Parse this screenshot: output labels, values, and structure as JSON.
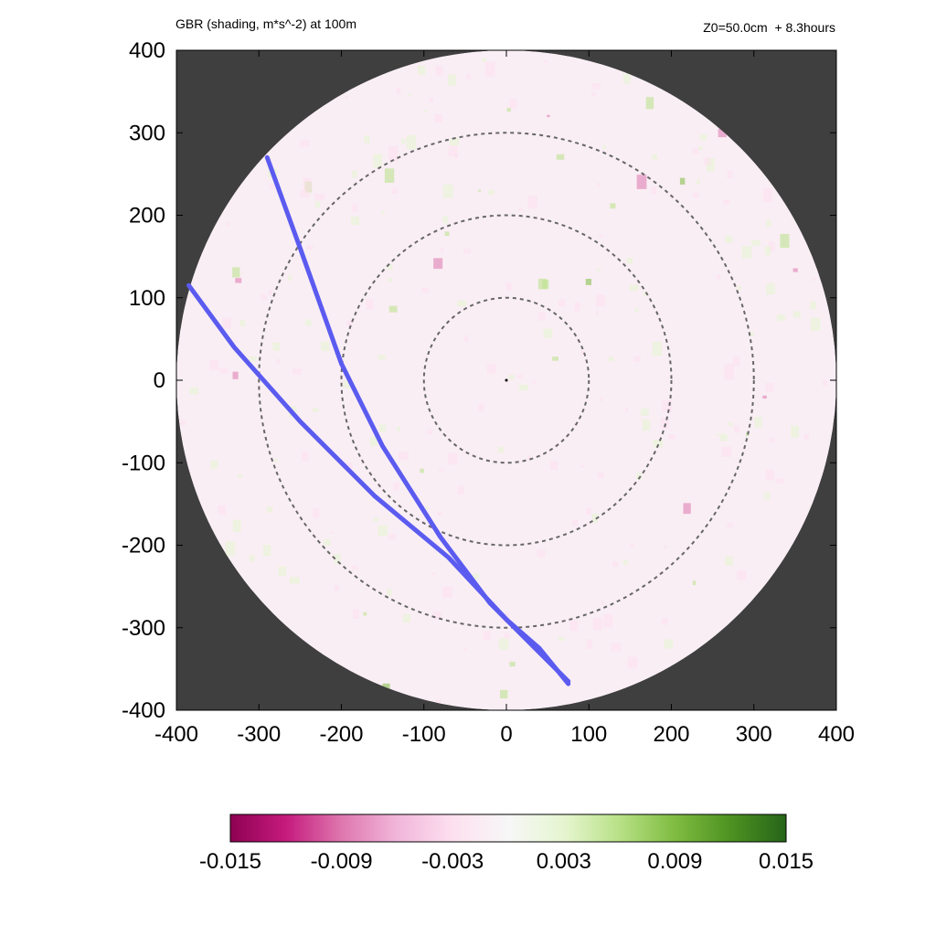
{
  "header": {
    "title_left": "GBR (shading, m*s^-2) at 100m",
    "title_right": "Z0=50.0cm  + 8.3hours"
  },
  "chart_data": {
    "type": "heatmap",
    "title": "GBR (shading, m*s^-2) at 100m",
    "subtitle": "Z0=50.0cm  + 8.3hours",
    "xlim": [
      -400,
      400
    ],
    "ylim": [
      -400,
      400
    ],
    "x_ticks": [
      -400,
      -300,
      -200,
      -100,
      0,
      100,
      200,
      300,
      400
    ],
    "y_ticks": [
      400,
      300,
      200,
      100,
      0,
      -100,
      -200,
      -300,
      -400
    ],
    "domain_radius": 400,
    "range_rings": [
      100,
      200,
      300
    ],
    "background_color": "#3f3f3f",
    "colorbar": {
      "min": -0.015,
      "max": 0.015,
      "tick_labels": [
        "-0.015",
        "-0.009",
        "-0.003",
        "0.003",
        "0.009",
        "0.015"
      ],
      "colors": [
        "#8e0152",
        "#c51b7d",
        "#de77ae",
        "#f1b6da",
        "#fde0ef",
        "#f7f7f7",
        "#e6f5d0",
        "#b8e186",
        "#7fbc41",
        "#4d9221",
        "#276419"
      ]
    },
    "tracks": {
      "color": "#5b5bf0",
      "paths": [
        [
          [
            -290,
            270
          ],
          [
            -250,
            160
          ],
          [
            -200,
            20
          ],
          [
            -150,
            -80
          ],
          [
            -80,
            -190
          ],
          [
            -20,
            -270
          ],
          [
            40,
            -330
          ],
          [
            75,
            -365
          ]
        ],
        [
          [
            -385,
            115
          ],
          [
            -330,
            40
          ],
          [
            -250,
            -50
          ],
          [
            -160,
            -140
          ],
          [
            -70,
            -215
          ],
          [
            0,
            -290
          ],
          [
            40,
            -325
          ],
          [
            75,
            -368
          ]
        ]
      ]
    }
  }
}
